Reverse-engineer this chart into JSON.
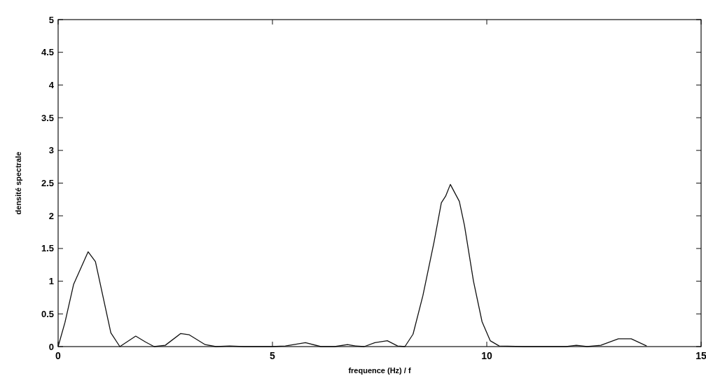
{
  "chart_data": {
    "type": "line",
    "xlabel": "frequence (Hz) / f",
    "ylabel": "densité spectrale",
    "xlim": [
      0,
      15
    ],
    "ylim": [
      0,
      5
    ],
    "xticks": [
      0,
      5,
      10,
      15
    ],
    "yticks": [
      0,
      0.5,
      1,
      1.5,
      2,
      2.5,
      3,
      3.5,
      4,
      4.5,
      5
    ],
    "grid": false,
    "series": [
      {
        "color": "#111111",
        "x": [
          0,
          0.16,
          0.36,
          0.7,
          0.87,
          1.23,
          1.44,
          1.81,
          2.04,
          2.24,
          2.5,
          2.86,
          3.06,
          3.43,
          3.68,
          4.0,
          4.33,
          4.98,
          5.3,
          5.77,
          6.13,
          6.45,
          6.75,
          6.94,
          7.14,
          7.39,
          7.68,
          7.92,
          8.09,
          8.28,
          8.51,
          8.77,
          8.94,
          9.04,
          9.15,
          9.36,
          9.48,
          9.69,
          9.89,
          10.08,
          10.29,
          10.87,
          11.85,
          12.09,
          12.34,
          12.66,
          13.07,
          13.37,
          13.73
        ],
        "values": [
          0,
          0.37,
          0.95,
          1.45,
          1.3,
          0.21,
          0,
          0.16,
          0.07,
          0,
          0.02,
          0.2,
          0.18,
          0.03,
          0,
          0.01,
          0,
          0,
          0.01,
          0.06,
          0,
          0,
          0.03,
          0.01,
          0,
          0.06,
          0.09,
          0.01,
          0,
          0.19,
          0.78,
          1.6,
          2.2,
          2.3,
          2.48,
          2.22,
          1.85,
          1.0,
          0.38,
          0.09,
          0.01,
          0,
          0,
          0.02,
          0,
          0.02,
          0.12,
          0.12,
          0.01
        ]
      }
    ]
  }
}
